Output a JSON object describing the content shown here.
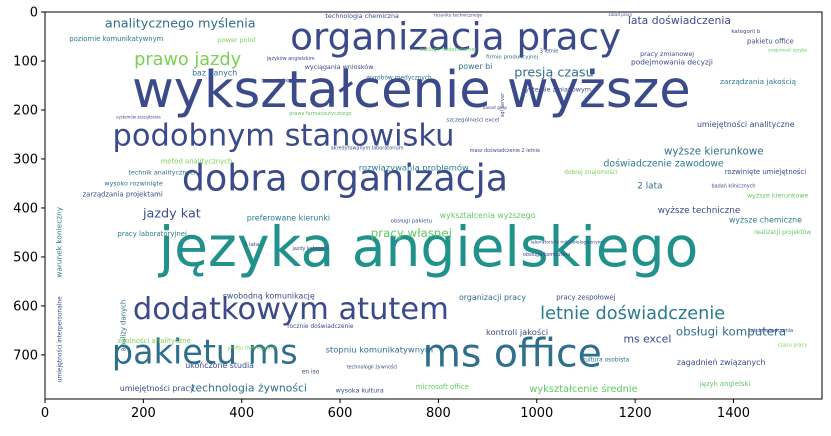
{
  "chart_data": {
    "type": "wordcloud",
    "title": "",
    "xlabel": "",
    "ylabel": "",
    "xlim": [
      0,
      1580
    ],
    "ylim": [
      790,
      0
    ],
    "x_ticks": [
      0,
      200,
      400,
      600,
      800,
      1000,
      1200,
      1400
    ],
    "y_ticks": [
      0,
      100,
      200,
      300,
      400,
      500,
      600,
      700
    ],
    "grid": false,
    "colors": [
      "#440154",
      "#3b528b",
      "#21918c",
      "#5ec962",
      "#fde725"
    ],
    "words": [
      {
        "text": "wykształcenie wyższe",
        "x": 745,
        "y": 165,
        "size": 104,
        "color": "#3b4a8a",
        "rotate": 0
      },
      {
        "text": "języka angielskiego",
        "x": 780,
        "y": 488,
        "size": 112,
        "color": "#21918c",
        "rotate": 0
      },
      {
        "text": "organizacja pracy",
        "x": 835,
        "y": 55,
        "size": 76,
        "color": "#3b4a8a",
        "rotate": 0
      },
      {
        "text": "dobra organizacja",
        "x": 610,
        "y": 343,
        "size": 74,
        "color": "#3b4a8a",
        "rotate": 0
      },
      {
        "text": "podobnym stanowisku",
        "x": 485,
        "y": 255,
        "size": 62,
        "color": "#3b4a8a",
        "rotate": 0
      },
      {
        "text": "dodatkowym atutem",
        "x": 500,
        "y": 609,
        "size": 62,
        "color": "#3b4a8a",
        "rotate": 0
      },
      {
        "text": "pakietu ms",
        "x": 325,
        "y": 698,
        "size": 68,
        "color": "#2f6f8e",
        "rotate": 0
      },
      {
        "text": "ms office",
        "x": 950,
        "y": 702,
        "size": 80,
        "color": "#2f6f8e",
        "rotate": 0
      },
      {
        "text": "letnie doświadczenie",
        "x": 1195,
        "y": 616,
        "size": 36,
        "color": "#2a7b8e",
        "rotate": 0
      },
      {
        "text": "prawo jazdy",
        "x": 290,
        "y": 98,
        "size": 36,
        "color": "#7ad151",
        "rotate": 0
      },
      {
        "text": "analitycznego myślenia",
        "x": 275,
        "y": 24,
        "size": 26,
        "color": "#2f6f8e",
        "rotate": 0
      },
      {
        "text": "presją czasu",
        "x": 1035,
        "y": 125,
        "size": 26,
        "color": "#2f6f8e",
        "rotate": 0
      },
      {
        "text": "lata doświadczenia",
        "x": 1290,
        "y": 18,
        "size": 22,
        "color": "#3b4a8a",
        "rotate": 0
      },
      {
        "text": "jazdy kat",
        "x": 258,
        "y": 412,
        "size": 26,
        "color": "#3b4a8a",
        "rotate": 0
      },
      {
        "text": "pracy własnej",
        "x": 745,
        "y": 452,
        "size": 24,
        "color": "#5ec962",
        "rotate": 0
      },
      {
        "text": "technologia żywności",
        "x": 415,
        "y": 769,
        "size": 22,
        "color": "#2f6f8e",
        "rotate": 0
      },
      {
        "text": "obsługi komputera",
        "x": 1395,
        "y": 653,
        "size": 24,
        "color": "#2f6f8e",
        "rotate": 0
      },
      {
        "text": "zarządzania jakością",
        "x": 1450,
        "y": 143,
        "size": 15,
        "color": "#2a7b8e",
        "rotate": 0
      },
      {
        "text": "umiejętności analityczne",
        "x": 1425,
        "y": 230,
        "size": 16,
        "color": "#3b4a8a",
        "rotate": 0
      },
      {
        "text": "wyższe kierunkowe",
        "x": 1360,
        "y": 285,
        "size": 21,
        "color": "#2f6f8e",
        "rotate": 0
      },
      {
        "text": "doświadczenie zawodowe",
        "x": 1258,
        "y": 310,
        "size": 19,
        "color": "#2a7b8e",
        "rotate": 0
      },
      {
        "text": "rozwiązywania problemów",
        "x": 750,
        "y": 318,
        "size": 17,
        "color": "#2a7b8e",
        "rotate": 0
      },
      {
        "text": "rozwinięte umiejętności",
        "x": 1465,
        "y": 327,
        "size": 14,
        "color": "#3b4a8a",
        "rotate": 0
      },
      {
        "text": "2 lata",
        "x": 1230,
        "y": 355,
        "size": 18,
        "color": "#2f6f8e",
        "rotate": 0
      },
      {
        "text": "wyższe techniczne",
        "x": 1330,
        "y": 405,
        "size": 18,
        "color": "#3b4a8a",
        "rotate": 0
      },
      {
        "text": "wyższe chemiczne",
        "x": 1465,
        "y": 425,
        "size": 16,
        "color": "#2a7b8e",
        "rotate": 0
      },
      {
        "text": "wyższe kierunkowe",
        "x": 1490,
        "y": 375,
        "size": 13,
        "color": "#5ec962",
        "rotate": 0
      },
      {
        "text": "ms excel",
        "x": 1225,
        "y": 669,
        "size": 22,
        "color": "#3b4a8a",
        "rotate": 0
      },
      {
        "text": "kontroli jakości",
        "x": 960,
        "y": 654,
        "size": 17,
        "color": "#3b4a8a",
        "rotate": 0
      },
      {
        "text": "organizacji pracy",
        "x": 910,
        "y": 583,
        "size": 16,
        "color": "#2f6f8e",
        "rotate": 0
      },
      {
        "text": "pracy zespołowej",
        "x": 1100,
        "y": 583,
        "size": 14,
        "color": "#3b4a8a",
        "rotate": 0
      },
      {
        "text": "stopniu komunikatywnym",
        "x": 680,
        "y": 690,
        "size": 17,
        "color": "#2f6f8e",
        "rotate": 0
      },
      {
        "text": "swobodną komunikację",
        "x": 455,
        "y": 580,
        "size": 16,
        "color": "#3b4a8a",
        "rotate": 0
      },
      {
        "text": "ukończone studia",
        "x": 355,
        "y": 722,
        "size": 16,
        "color": "#3b4a8a",
        "rotate": 0
      },
      {
        "text": "umiejętności pracy",
        "x": 228,
        "y": 769,
        "size": 16,
        "color": "#3b4a8a",
        "rotate": 0
      },
      {
        "text": "wykształcenia wyższego",
        "x": 900,
        "y": 415,
        "size": 16,
        "color": "#5ec962",
        "rotate": 0
      },
      {
        "text": "wykształcenie średnie",
        "x": 1095,
        "y": 770,
        "size": 20,
        "color": "#5ec962",
        "rotate": 0
      },
      {
        "text": "zagadnień związanych",
        "x": 1375,
        "y": 716,
        "size": 16,
        "color": "#3b4a8a",
        "rotate": 0
      },
      {
        "text": "preferowane kierunki",
        "x": 495,
        "y": 421,
        "size": 16,
        "color": "#2a7b8e",
        "rotate": 0
      },
      {
        "text": "pracy laboratoryjnej",
        "x": 218,
        "y": 453,
        "size": 14,
        "color": "#2a7b8e",
        "rotate": 0
      },
      {
        "text": "zarządzania projektami",
        "x": 158,
        "y": 373,
        "size": 14,
        "color": "#3b4a8a",
        "rotate": 0
      },
      {
        "text": "metod analitycznych",
        "x": 308,
        "y": 305,
        "size": 14,
        "color": "#7ad151",
        "rotate": 0
      },
      {
        "text": "technik analitycznych",
        "x": 240,
        "y": 328,
        "size": 13,
        "color": "#2f6f8e",
        "rotate": 0
      },
      {
        "text": "wysoko rozwinięte",
        "x": 180,
        "y": 350,
        "size": 13,
        "color": "#2f6f8e",
        "rotate": 0
      },
      {
        "text": "baz danych",
        "x": 345,
        "y": 125,
        "size": 16,
        "color": "#2f6f8e",
        "rotate": 0
      },
      {
        "text": "poziomie komunikatywnym",
        "x": 145,
        "y": 55,
        "size": 14,
        "color": "#2a7b8e",
        "rotate": 0
      },
      {
        "text": "podejmowania decyzji",
        "x": 1275,
        "y": 103,
        "size": 15,
        "color": "#3b4a8a",
        "rotate": 0
      },
      {
        "text": "systemie zmianowym",
        "x": 1040,
        "y": 158,
        "size": 13,
        "color": "#3b4a8a",
        "rotate": 0
      },
      {
        "text": "power bi",
        "x": 875,
        "y": 111,
        "size": 16,
        "color": "#2f6f8e",
        "rotate": 0
      },
      {
        "text": "technologia chemiczna",
        "x": 645,
        "y": 8,
        "size": 13,
        "color": "#3b4a8a",
        "rotate": 0
      },
      {
        "text": "pakietu office",
        "x": 1475,
        "y": 60,
        "size": 14,
        "color": "#3b4a8a",
        "rotate": 0
      },
      {
        "text": "wyciągania wniosków",
        "x": 598,
        "y": 112,
        "size": 13,
        "color": "#3b4a8a",
        "rotate": 0
      },
      {
        "text": "pracy zmianowej",
        "x": 1265,
        "y": 86,
        "size": 13,
        "color": "#3b4a8a",
        "rotate": 0
      },
      {
        "text": "power point",
        "x": 390,
        "y": 57,
        "size": 13,
        "color": "#7ad151",
        "rotate": 0
      },
      {
        "text": "wyrobów medycznych",
        "x": 720,
        "y": 135,
        "size": 12,
        "color": "#2f6f8e",
        "rotate": 0
      },
      {
        "text": "microsoft office",
        "x": 808,
        "y": 766,
        "size": 14,
        "color": "#5ec962",
        "rotate": 0
      },
      {
        "text": "analizy danych",
        "x": 160,
        "y": 640,
        "size": 14,
        "color": "#2f6f8e",
        "rotate": 90
      },
      {
        "text": "zdolności analityczne",
        "x": 222,
        "y": 672,
        "size": 14,
        "color": "#7ad151",
        "rotate": 0
      },
      {
        "text": "warunek konieczny",
        "x": 30,
        "y": 470,
        "size": 15,
        "color": "#2a7b8e",
        "rotate": 90
      },
      {
        "text": "umiejętności interpersonalne",
        "x": 30,
        "y": 668,
        "size": 12,
        "color": "#3b4a8a",
        "rotate": 90
      },
      {
        "text": "wysoka kultura",
        "x": 640,
        "y": 773,
        "size": 13,
        "color": "#3b4a8a",
        "rotate": 0
      },
      {
        "text": "język angielski",
        "x": 1383,
        "y": 759,
        "size": 14,
        "color": "#5ec962",
        "rotate": 0
      },
      {
        "text": "realizacji projektów",
        "x": 1500,
        "y": 450,
        "size": 12,
        "color": "#5ec962",
        "rotate": 0
      },
      {
        "text": "kultura osobista",
        "x": 1140,
        "y": 710,
        "size": 12,
        "color": "#2f6f8e",
        "rotate": 0
      },
      {
        "text": "akredytowanym laboratorium",
        "x": 655,
        "y": 278,
        "size": 10,
        "color": "#3b4a8a",
        "rotate": 0
      },
      {
        "text": "masz doświadczenie 2 letnie",
        "x": 935,
        "y": 283,
        "size": 10,
        "color": "#3b4a8a",
        "rotate": 0
      },
      {
        "text": "dobrej znajomości",
        "x": 1110,
        "y": 328,
        "size": 12,
        "color": "#7ad151",
        "rotate": 0
      },
      {
        "text": "szczególności excel",
        "x": 870,
        "y": 220,
        "size": 11,
        "color": "#3b4a8a",
        "rotate": 0
      },
      {
        "text": "obsługi pakietu",
        "x": 745,
        "y": 427,
        "size": 11,
        "color": "#3b4a8a",
        "rotate": 0
      },
      {
        "text": "rocznie doświadczenie",
        "x": 560,
        "y": 642,
        "size": 12,
        "color": "#3b4a8a",
        "rotate": 0
      },
      {
        "text": "technologii żywności",
        "x": 665,
        "y": 725,
        "size": 10,
        "color": "#3b4a8a",
        "rotate": 0
      },
      {
        "text": "obsługa komputera",
        "x": 1020,
        "y": 495,
        "size": 10,
        "color": "#3b4a8a",
        "rotate": 0
      },
      {
        "text": "laboratorium mikrobiologicznym",
        "x": 1060,
        "y": 470,
        "size": 9,
        "color": "#3b4a8a",
        "rotate": 0
      },
      {
        "text": "badań klinicznych",
        "x": 1400,
        "y": 355,
        "size": 10,
        "color": "#3b4a8a",
        "rotate": 0
      },
      {
        "text": "3 lata",
        "x": 420,
        "y": 475,
        "size": 11,
        "color": "#3b4a8a",
        "rotate": 0
      },
      {
        "text": "jazdy kategorii",
        "x": 540,
        "y": 483,
        "size": 10,
        "color": "#3b4a8a",
        "rotate": 0
      },
      {
        "text": "biologii molekularnej",
        "x": 820,
        "y": 77,
        "size": 11,
        "color": "#5ec962",
        "rotate": 0
      },
      {
        "text": "firmie produkcyjnej",
        "x": 950,
        "y": 92,
        "size": 11,
        "color": "#2f6f8e",
        "rotate": 0
      },
      {
        "text": "3 letnie",
        "x": 1025,
        "y": 80,
        "size": 10,
        "color": "#3b4a8a",
        "rotate": 0
      },
      {
        "text": "języków angielskim",
        "x": 500,
        "y": 95,
        "size": 10,
        "color": "#3b4a8a",
        "rotate": 0
      },
      {
        "text": "bazami danych",
        "x": 478,
        "y": 140,
        "size": 10,
        "color": "#3b4a8a",
        "rotate": 0
      },
      {
        "text": "prawa farmaceutycznego",
        "x": 560,
        "y": 207,
        "size": 10,
        "color": "#5ec962",
        "rotate": 0
      },
      {
        "text": "zasad gmp",
        "x": 915,
        "y": 195,
        "size": 9,
        "color": "#3b4a8a",
        "rotate": 0
      },
      {
        "text": "profilu chemicznym",
        "x": 420,
        "y": 686,
        "size": 10,
        "color": "#7ad151",
        "rotate": 0
      },
      {
        "text": "kategorii b",
        "x": 1425,
        "y": 40,
        "size": 11,
        "color": "#3b4a8a",
        "rotate": 0
      },
      {
        "text": "czasu pracy",
        "x": 1520,
        "y": 680,
        "size": 10,
        "color": "#7ad151",
        "rotate": 0
      },
      {
        "text": "1at doświadczenia",
        "x": 1475,
        "y": 650,
        "size": 10,
        "color": "#3b4a8a",
        "rotate": 0
      },
      {
        "text": "sql server",
        "x": 930,
        "y": 190,
        "size": 10,
        "color": "#3b4a8a",
        "rotate": 90
      },
      {
        "text": "en iso",
        "x": 540,
        "y": 735,
        "size": 12,
        "color": "#3b4a8a",
        "rotate": 0
      },
      {
        "text": "systemów zarządzania",
        "x": 190,
        "y": 215,
        "size": 8,
        "color": "#3b4a8a",
        "rotate": 0
      },
      {
        "text": "rysunku technicznego",
        "x": 840,
        "y": 6,
        "size": 9,
        "color": "#3b4a8a",
        "rotate": 0
      },
      {
        "text": "znajomość języka",
        "x": 1510,
        "y": 78,
        "size": 9,
        "color": "#5ec962",
        "rotate": 0
      },
      {
        "text": "zasad pracy",
        "x": 1170,
        "y": 6,
        "size": 8,
        "color": "#3b4a8a",
        "rotate": 0
      }
    ]
  }
}
